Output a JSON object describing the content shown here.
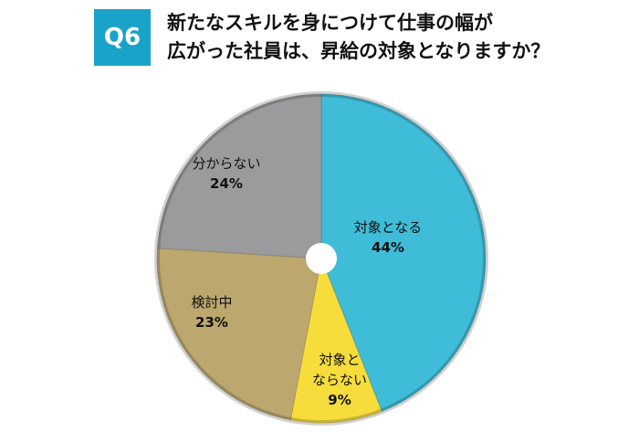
{
  "badge": "Q6",
  "chart_data": {
    "type": "pie",
    "title": "新たなスキルを身につけて仕事の幅が\n広がった社員は、昇給の対象となりますか？",
    "categories": [
      "対象となる",
      "対象と\nならない",
      "検討中",
      "分からない"
    ],
    "values": [
      44,
      9,
      23,
      24
    ],
    "value_labels": [
      "44%",
      "9%",
      "23%",
      "24%"
    ],
    "colors": [
      "#3fbcd8",
      "#f6dd3c",
      "#bca86f",
      "#9b9b9d"
    ]
  }
}
